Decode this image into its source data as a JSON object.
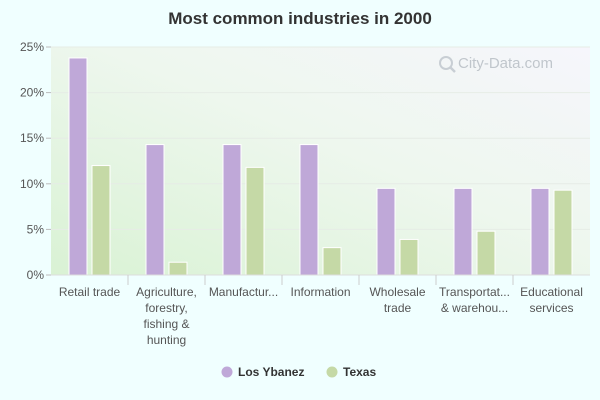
{
  "watermark": {
    "text": "City-Data.com",
    "icon": "magnifier-icon"
  },
  "chart_data": {
    "type": "bar",
    "title": "Most common industries in 2000",
    "xlabel": "",
    "ylabel": "",
    "ylim": [
      0,
      25
    ],
    "yticks": [
      0,
      5,
      10,
      15,
      20,
      25
    ],
    "ytick_labels": [
      "0%",
      "5%",
      "10%",
      "15%",
      "20%",
      "25%"
    ],
    "grid": true,
    "legend_position": "bottom-center",
    "categories": [
      [
        "Retail trade"
      ],
      [
        "Agriculture,",
        "forestry,",
        "fishing &",
        "hunting"
      ],
      [
        "Manufactur..."
      ],
      [
        "Information"
      ],
      [
        "Wholesale",
        "trade"
      ],
      [
        "Transportat...",
        "& warehou..."
      ],
      [
        "Educational",
        "services"
      ]
    ],
    "series": [
      {
        "name": "Los Ybanez",
        "color": "#bfa8d8",
        "values": [
          23.8,
          14.3,
          14.3,
          14.3,
          9.5,
          9.5,
          9.5
        ]
      },
      {
        "name": "Texas",
        "color": "#c5d9a6",
        "values": [
          12.0,
          1.4,
          11.8,
          3.0,
          3.9,
          4.8,
          9.3
        ]
      }
    ]
  }
}
